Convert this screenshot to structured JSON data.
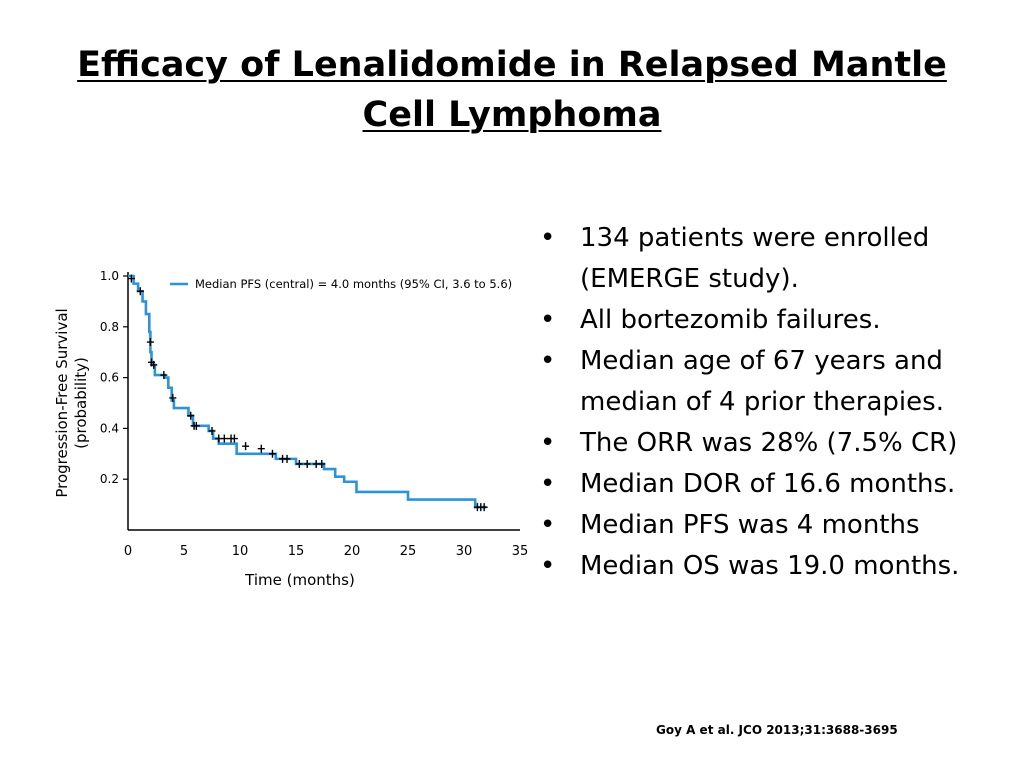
{
  "title": "Efficacy of Lenalidomide in Relapsed Mantle Cell Lymphoma",
  "bullets": [
    "134 patients were enrolled (EMERGE study).",
    "All bortezomib failures.",
    "Median age of 67 years and median of 4 prior therapies.",
    "The ORR was 28% (7.5% CR)",
    "Median DOR of 16.6 months.",
    "Median PFS was 4 months",
    "Median OS was 19.0 months."
  ],
  "citation": "Goy A et al. JCO 2013;31:3688-3695",
  "chart_data": {
    "type": "line",
    "xlabel": "Time (months)",
    "ylabel_line1": "Progression-Free Survival",
    "ylabel_line2": "(probability)",
    "x_ticks": [
      "0",
      "5",
      "10",
      "15",
      "20",
      "25",
      "30",
      "35"
    ],
    "y_ticks": [
      "1.0",
      "0.8",
      "0.6",
      "0.4",
      "0.2"
    ],
    "xlim": [
      0,
      35
    ],
    "ylim": [
      0,
      1.0
    ],
    "grid": false,
    "legend_position": "top-right",
    "colors": {
      "line": "#2d93d8",
      "censor": "#000000"
    },
    "series": [
      {
        "name": "Median PFS (central) = 4.0 months (95% CI, 3.6 to 5.6)",
        "step": true,
        "points": [
          [
            0,
            1.0
          ],
          [
            0.5,
            0.97
          ],
          [
            0.9,
            0.94
          ],
          [
            1.3,
            0.9
          ],
          [
            1.6,
            0.85
          ],
          [
            1.9,
            0.78
          ],
          [
            2.0,
            0.7
          ],
          [
            2.1,
            0.65
          ],
          [
            2.4,
            0.61
          ],
          [
            3.3,
            0.6
          ],
          [
            3.6,
            0.56
          ],
          [
            3.9,
            0.51
          ],
          [
            4.1,
            0.48
          ],
          [
            5.4,
            0.45
          ],
          [
            5.8,
            0.41
          ],
          [
            7.2,
            0.39
          ],
          [
            7.6,
            0.36
          ],
          [
            8.1,
            0.34
          ],
          [
            9.7,
            0.3
          ],
          [
            13.2,
            0.28
          ],
          [
            15.0,
            0.26
          ],
          [
            17.5,
            0.24
          ],
          [
            18.5,
            0.21
          ],
          [
            19.3,
            0.19
          ],
          [
            20.4,
            0.15
          ],
          [
            25.0,
            0.12
          ],
          [
            31.0,
            0.09
          ],
          [
            32.0,
            0.09
          ]
        ],
        "censored": [
          [
            0.3,
            0.99
          ],
          [
            1.1,
            0.94
          ],
          [
            2.0,
            0.74
          ],
          [
            2.1,
            0.66
          ],
          [
            2.3,
            0.65
          ],
          [
            3.2,
            0.61
          ],
          [
            4.0,
            0.52
          ],
          [
            5.6,
            0.45
          ],
          [
            5.9,
            0.41
          ],
          [
            6.1,
            0.41
          ],
          [
            7.5,
            0.39
          ],
          [
            8.1,
            0.36
          ],
          [
            8.6,
            0.36
          ],
          [
            9.2,
            0.36
          ],
          [
            9.5,
            0.36
          ],
          [
            10.5,
            0.33
          ],
          [
            11.9,
            0.32
          ],
          [
            12.9,
            0.3
          ],
          [
            13.8,
            0.28
          ],
          [
            14.2,
            0.28
          ],
          [
            15.3,
            0.26
          ],
          [
            16.0,
            0.26
          ],
          [
            16.8,
            0.26
          ],
          [
            17.3,
            0.26
          ],
          [
            31.2,
            0.09
          ],
          [
            31.5,
            0.09
          ],
          [
            31.8,
            0.09
          ]
        ]
      }
    ]
  }
}
